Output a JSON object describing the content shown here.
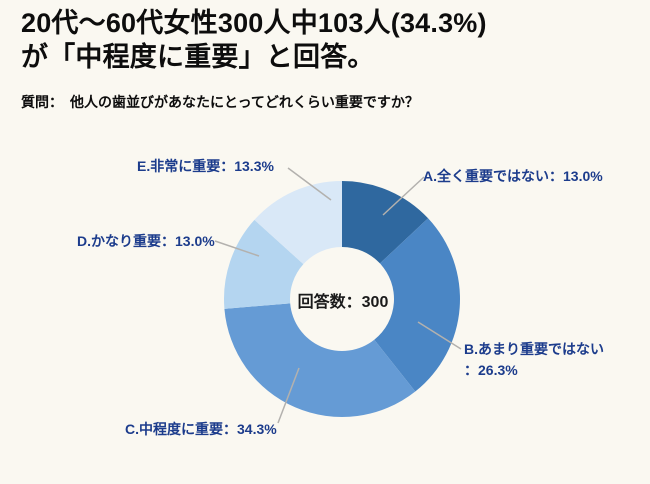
{
  "page": {
    "background": "#faf8f1"
  },
  "header": {
    "title": "20代〜60代女性300人中103人(34.3%)\nが「中程度に重要」と回答。",
    "question": "質問：　他人の歯並びがあなたにとってどれくらい重要ですか？"
  },
  "chart_data": {
    "type": "pie",
    "variant": "donut",
    "center_label": "回答数：300",
    "respondents_total": 300,
    "unit": "%",
    "start_angle_deg": 0,
    "clockwise": true,
    "legend_position": "callout-labels",
    "leader_line_color": "#b3b1ae",
    "label_color": "#1c3c8c",
    "segments": [
      {
        "code": "A",
        "label": "全く重要ではない",
        "pct": 13.0,
        "display": "A.全く重要ではない：13.0%",
        "color": "#2f689f"
      },
      {
        "code": "B",
        "label": "あまり重要ではない",
        "pct": 26.3,
        "display": "B.あまり重要ではない\n：26.3%",
        "color": "#4a86c5"
      },
      {
        "code": "C",
        "label": "中程度に重要",
        "pct": 34.3,
        "display": "C.中程度に重要：34.3%",
        "color": "#659bd5"
      },
      {
        "code": "D",
        "label": "かなり重要",
        "pct": 13.0,
        "display": "D.かなり重要：13.0%",
        "color": "#b4d5f0"
      },
      {
        "code": "E",
        "label": "非常に重要",
        "pct": 13.3,
        "display": "E.非常に重要：13.3%",
        "color": "#d9e8f7"
      }
    ]
  }
}
